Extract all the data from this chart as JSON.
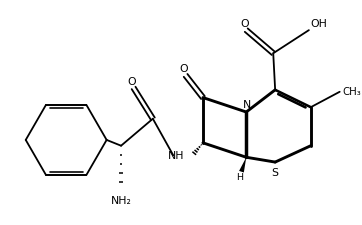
{
  "background_color": "#ffffff",
  "line_color": "#000000",
  "line_width": 1.3,
  "font_size": 7.8,
  "fig_width": 3.62,
  "fig_height": 2.26,
  "dpi": 100,
  "xlim": [
    0,
    9.05
  ],
  "ylim": [
    0,
    5.65
  ]
}
